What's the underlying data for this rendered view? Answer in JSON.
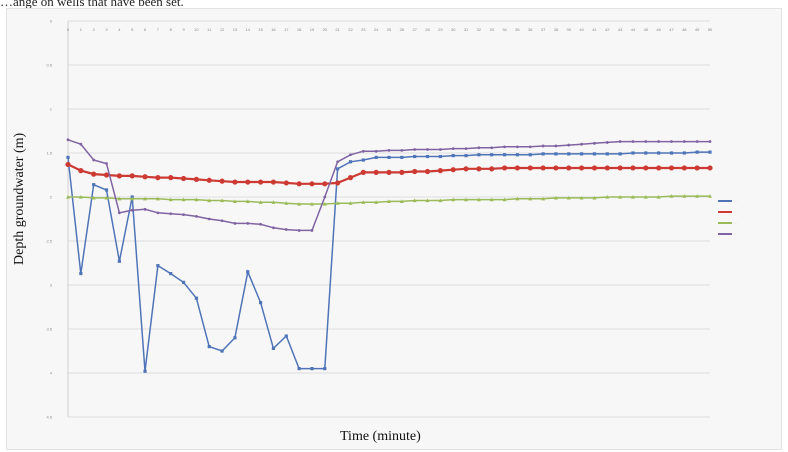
{
  "caption": "…ange on wells that have been set.",
  "chart_data": {
    "type": "line",
    "title": "",
    "xlabel": "Time (minute)",
    "ylabel": "Depth groundwater (m)",
    "ylim": [
      0,
      4.5
    ],
    "y_inverted": true,
    "y_ticks": [
      "0",
      "0.5",
      "1",
      "1.5",
      "2",
      "2.5",
      "3",
      "3.5",
      "4",
      "4.5"
    ],
    "x_ticks": [
      "0",
      "1",
      "2",
      "3",
      "4",
      "5",
      "6",
      "7",
      "8",
      "9",
      "10",
      "11",
      "12",
      "13",
      "14",
      "15",
      "16",
      "17",
      "18",
      "19",
      "20",
      "21",
      "22",
      "23",
      "24",
      "25",
      "26",
      "27",
      "28",
      "29",
      "30",
      "31",
      "32",
      "33",
      "34",
      "35",
      "36",
      "37",
      "38",
      "39",
      "40",
      "41",
      "42",
      "43",
      "44",
      "45",
      "46",
      "47",
      "48",
      "49",
      "50"
    ],
    "grid": true,
    "legend_position": "right",
    "series": [
      {
        "name": "",
        "color": "#4f74b8",
        "marker": "square",
        "values": [
          1.55,
          2.87,
          1.86,
          1.92,
          2.73,
          2.0,
          3.98,
          2.78,
          2.87,
          2.97,
          3.15,
          3.7,
          3.75,
          3.6,
          2.85,
          3.2,
          3.72,
          3.58,
          3.95,
          3.95,
          3.95,
          1.68,
          1.6,
          1.58,
          1.55,
          1.55,
          1.55,
          1.54,
          1.54,
          1.54,
          1.53,
          1.53,
          1.52,
          1.52,
          1.52,
          1.52,
          1.52,
          1.51,
          1.51,
          1.51,
          1.51,
          1.51,
          1.51,
          1.51,
          1.5,
          1.5,
          1.5,
          1.5,
          1.5,
          1.49,
          1.49
        ]
      },
      {
        "name": "",
        "color": "#cc3a33",
        "marker": "diamond",
        "values": [
          1.63,
          1.7,
          1.74,
          1.75,
          1.76,
          1.76,
          1.77,
          1.78,
          1.78,
          1.79,
          1.8,
          1.81,
          1.82,
          1.83,
          1.83,
          1.83,
          1.83,
          1.84,
          1.85,
          1.85,
          1.85,
          1.84,
          1.78,
          1.72,
          1.72,
          1.72,
          1.72,
          1.71,
          1.71,
          1.7,
          1.69,
          1.68,
          1.68,
          1.68,
          1.67,
          1.67,
          1.67,
          1.67,
          1.67,
          1.67,
          1.67,
          1.67,
          1.67,
          1.67,
          1.67,
          1.67,
          1.67,
          1.67,
          1.67,
          1.67,
          1.67
        ]
      },
      {
        "name": "",
        "color": "#9bbb59",
        "marker": "triangle",
        "values": [
          2.0,
          2.0,
          2.01,
          2.01,
          2.02,
          2.02,
          2.02,
          2.02,
          2.03,
          2.03,
          2.03,
          2.04,
          2.04,
          2.05,
          2.05,
          2.06,
          2.06,
          2.07,
          2.08,
          2.08,
          2.08,
          2.07,
          2.07,
          2.06,
          2.06,
          2.05,
          2.05,
          2.04,
          2.04,
          2.04,
          2.03,
          2.03,
          2.03,
          2.03,
          2.03,
          2.02,
          2.02,
          2.02,
          2.01,
          2.01,
          2.01,
          2.01,
          2.0,
          2.0,
          2.0,
          2.0,
          2.0,
          1.99,
          1.99,
          1.99,
          1.99
        ]
      },
      {
        "name": "",
        "color": "#8064a2",
        "marker": "x",
        "values": [
          1.35,
          1.4,
          1.58,
          1.62,
          2.18,
          2.15,
          2.14,
          2.18,
          2.19,
          2.2,
          2.22,
          2.25,
          2.27,
          2.3,
          2.3,
          2.31,
          2.35,
          2.37,
          2.38,
          2.38,
          2.0,
          1.6,
          1.52,
          1.48,
          1.48,
          1.47,
          1.47,
          1.46,
          1.46,
          1.46,
          1.45,
          1.45,
          1.44,
          1.44,
          1.43,
          1.43,
          1.43,
          1.42,
          1.42,
          1.41,
          1.4,
          1.39,
          1.38,
          1.37,
          1.37,
          1.37,
          1.37,
          1.37,
          1.37,
          1.37,
          1.37
        ]
      }
    ]
  },
  "legend": {
    "items": [
      {
        "label": "…",
        "color": "#4f74b8"
      },
      {
        "label": "…",
        "color": "#cc3a33"
      },
      {
        "label": "…",
        "color": "#9bbb59"
      },
      {
        "label": "…",
        "color": "#8064a2"
      }
    ]
  }
}
